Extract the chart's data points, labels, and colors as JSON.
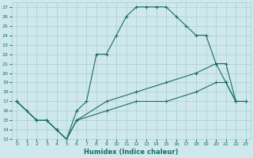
{
  "xlabel": "Humidex (Indice chaleur)",
  "ylabel": "",
  "xlim": [
    -0.5,
    23.5
  ],
  "ylim": [
    13,
    27.5
  ],
  "yticks": [
    13,
    14,
    15,
    16,
    17,
    18,
    19,
    20,
    21,
    22,
    23,
    24,
    25,
    26,
    27
  ],
  "xticks": [
    0,
    1,
    2,
    3,
    4,
    5,
    6,
    7,
    8,
    9,
    10,
    11,
    12,
    13,
    14,
    15,
    16,
    17,
    18,
    19,
    20,
    21,
    22,
    23
  ],
  "bg_color": "#cfe8ec",
  "grid_color": "#a8cdd4",
  "line_color": "#1a6b6b",
  "lines": [
    {
      "x": [
        0,
        1,
        2,
        3,
        4,
        5,
        6,
        7,
        8,
        9,
        10,
        11,
        12,
        13,
        14,
        15,
        16,
        17,
        18,
        19,
        20,
        21,
        22
      ],
      "y": [
        17,
        16,
        15,
        15,
        14,
        13,
        16,
        17,
        22,
        22,
        24,
        26,
        27,
        27,
        27,
        27,
        26,
        25,
        24,
        24,
        21,
        21,
        17
      ]
    },
    {
      "x": [
        0,
        2,
        3,
        4,
        5,
        6,
        9,
        12,
        15,
        18,
        20,
        21,
        22,
        23
      ],
      "y": [
        17,
        15,
        15,
        14,
        13,
        15,
        17,
        18,
        19,
        20,
        21,
        19,
        17,
        17
      ]
    },
    {
      "x": [
        0,
        2,
        3,
        4,
        5,
        6,
        9,
        12,
        15,
        18,
        20,
        21,
        22,
        23
      ],
      "y": [
        17,
        15,
        15,
        14,
        13,
        15,
        16,
        17,
        17,
        18,
        19,
        19,
        17,
        17
      ]
    }
  ]
}
